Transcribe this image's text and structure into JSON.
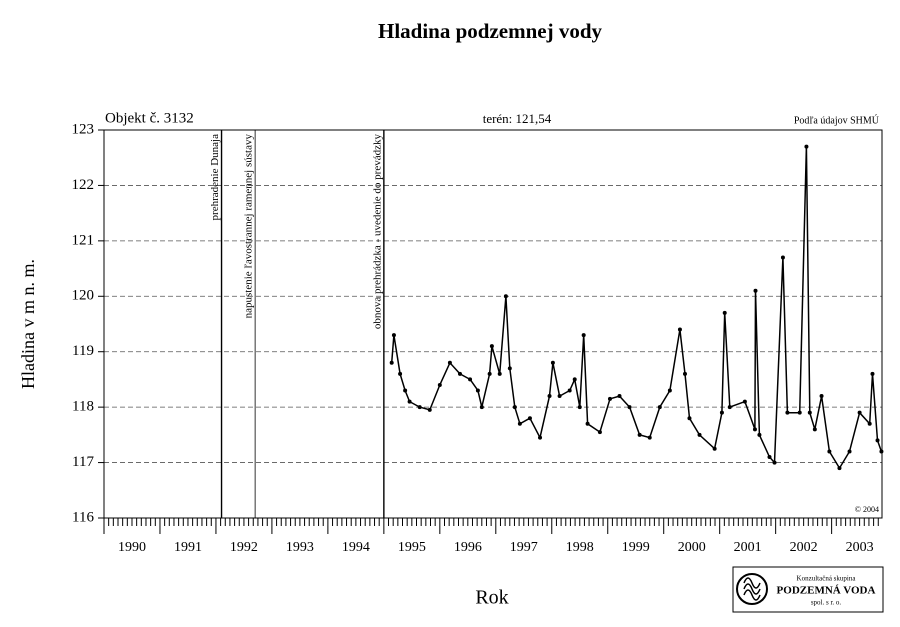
{
  "chart_data": {
    "type": "line",
    "title": "Hladina podzemnej vody",
    "annotations": {
      "object": "Objekt č. 3132",
      "terrain": "terén: 121,54",
      "source": "Podľa údajov SHMÚ",
      "copyright": "© 2004"
    },
    "ylabel": "Hladina v m n. m.",
    "xlabel": "Rok",
    "logo": [
      "Konzultačná skupina",
      "PODZEMNÁ VODA",
      "spol. s r. o."
    ],
    "events": [
      {
        "x": 1992.1,
        "label": "prehradenie Dunaja"
      },
      {
        "x": 1992.7,
        "label": "napustenie ľavostrannej ramennej sústavy"
      },
      {
        "x": 1995.0,
        "label": "obnova prehrádzka - uvedenie do prevádzky"
      }
    ],
    "x": [
      1995.14,
      1995.18,
      1995.29,
      1995.38,
      1995.46,
      1995.64,
      1995.82,
      1996.0,
      1996.18,
      1996.36,
      1996.54,
      1996.68,
      1996.75,
      1996.89,
      1996.93,
      1997.07,
      1997.18,
      1997.25,
      1997.34,
      1997.43,
      1997.61,
      1997.79,
      1997.96,
      1998.02,
      1998.14,
      1998.32,
      1998.41,
      1998.5,
      1998.57,
      1998.64,
      1998.86,
      1999.04,
      1999.21,
      1999.39,
      1999.57,
      1999.75,
      1999.93,
      2000.11,
      2000.29,
      2000.38,
      2000.46,
      2000.64,
      2000.91,
      2001.04,
      2001.09,
      2001.18,
      2001.45,
      2001.63,
      2001.64,
      2001.71,
      2001.89,
      2001.98,
      2002.13,
      2002.21,
      2002.43,
      2002.55,
      2002.61,
      2002.7,
      2002.82,
      2002.96,
      2003.14,
      2003.32,
      2003.5,
      2003.68,
      2003.73,
      2003.82,
      2003.89
    ],
    "values": [
      118.8,
      119.3,
      118.6,
      118.3,
      118.1,
      118.0,
      117.95,
      118.4,
      118.8,
      118.6,
      118.5,
      118.3,
      118.0,
      118.6,
      119.1,
      118.6,
      120.0,
      118.7,
      118.0,
      117.7,
      117.8,
      117.45,
      118.2,
      118.8,
      118.2,
      118.3,
      118.5,
      118.0,
      119.3,
      117.7,
      117.55,
      118.15,
      118.2,
      118.0,
      117.5,
      117.45,
      118.0,
      118.3,
      119.4,
      118.6,
      117.8,
      117.5,
      117.25,
      117.9,
      119.7,
      118.0,
      118.1,
      117.6,
      120.1,
      117.5,
      117.1,
      117.0,
      120.7,
      117.9,
      117.9,
      122.7,
      117.9,
      117.6,
      118.2,
      117.2,
      116.9,
      117.2,
      117.9,
      117.7,
      118.6,
      117.4,
      117.2
    ],
    "color": "#000000",
    "xlim": [
      1990,
      2003.9
    ],
    "xticks": [
      1990,
      1991,
      1992,
      1993,
      1994,
      1995,
      1996,
      1997,
      1998,
      1999,
      2000,
      2001,
      2002,
      2003
    ],
    "ylim": [
      116,
      123
    ],
    "yticks": [
      116,
      117,
      118,
      119,
      120,
      121,
      122,
      123
    ],
    "grid": true
  }
}
